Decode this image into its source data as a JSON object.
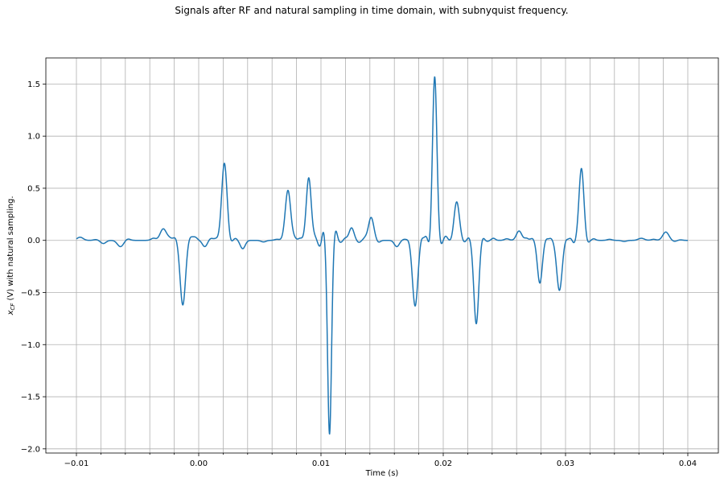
{
  "chart_data": {
    "type": "line",
    "title": "Signals after RF and natural sampling in time domain, with subnyquist frequency.",
    "xlabel": "Time (s)",
    "ylabel": "x_CF (V) with natural sampling.",
    "ylabel_main": "x",
    "ylabel_sub": "CF",
    "ylabel_rest": " (V) with natural sampling.",
    "xlim": [
      -0.0125,
      0.0425
    ],
    "ylim": [
      -2.04,
      1.75
    ],
    "grid": true,
    "x_ticks": [
      -0.01,
      0.0,
      0.01,
      0.02,
      0.03,
      0.04
    ],
    "x_tick_labels": [
      "−0.01",
      "0.00",
      "0.01",
      "0.02",
      "0.03",
      "0.04"
    ],
    "x_gridlines": [
      -0.01,
      -0.008,
      -0.006,
      -0.004,
      -0.002,
      0.0,
      0.002,
      0.004,
      0.006,
      0.008,
      0.01,
      0.012,
      0.014,
      0.016,
      0.018,
      0.02,
      0.022,
      0.024,
      0.026,
      0.028,
      0.03,
      0.032,
      0.034,
      0.036,
      0.038,
      0.04
    ],
    "y_ticks": [
      -2.0,
      -1.5,
      -1.0,
      -0.5,
      0.0,
      0.5,
      1.0,
      1.5
    ],
    "y_tick_labels": [
      "−2.0",
      "−1.5",
      "−1.0",
      "−0.5",
      "0.0",
      "0.5",
      "1.0",
      "1.5"
    ],
    "series": [
      {
        "color": "#1f77b4",
        "pulses": [
          {
            "t": -0.0097,
            "a": 0.03,
            "w": 0.00025
          },
          {
            "t": -0.0084,
            "a": 0.008,
            "w": 0.0002
          },
          {
            "t": -0.0078,
            "a": -0.03,
            "w": 0.00022
          },
          {
            "t": -0.0064,
            "a": -0.06,
            "w": 0.00025
          },
          {
            "t": -0.0058,
            "a": 0.015,
            "w": 0.0002
          },
          {
            "t": -0.0037,
            "a": 0.02,
            "w": 0.0002
          },
          {
            "t": -0.0029,
            "a": 0.11,
            "w": 0.00025
          },
          {
            "t": -0.0024,
            "a": 0.02,
            "w": 0.0002
          },
          {
            "t": -0.0019,
            "a": 0.03,
            "w": 0.00018
          },
          {
            "t": -0.0013,
            "a": -0.62,
            "w": 0.00022
          },
          {
            "t": -0.0007,
            "a": 0.035,
            "w": 0.00018
          },
          {
            "t": -0.0003,
            "a": 0.03,
            "w": 0.00018
          },
          {
            "t": 0.0005,
            "a": -0.06,
            "w": 0.0002
          },
          {
            "t": 0.001,
            "a": 0.02,
            "w": 0.00018
          },
          {
            "t": 0.0014,
            "a": 0.015,
            "w": 0.00015
          },
          {
            "t": 0.0021,
            "a": 0.74,
            "w": 0.00022
          },
          {
            "t": 0.0026,
            "a": -0.03,
            "w": 0.00016
          },
          {
            "t": 0.003,
            "a": 0.02,
            "w": 0.00016
          },
          {
            "t": 0.0036,
            "a": -0.08,
            "w": 0.0002
          },
          {
            "t": 0.0053,
            "a": -0.015,
            "w": 0.0002
          },
          {
            "t": 0.0064,
            "a": 0.01,
            "w": 0.0002
          },
          {
            "t": 0.0073,
            "a": 0.48,
            "w": 0.00022
          },
          {
            "t": 0.0078,
            "a": 0.02,
            "w": 0.00016
          },
          {
            "t": 0.0083,
            "a": 0.02,
            "w": 0.00016
          },
          {
            "t": 0.009,
            "a": 0.6,
            "w": 0.0002
          },
          {
            "t": 0.0095,
            "a": 0.03,
            "w": 0.00016
          },
          {
            "t": 0.0099,
            "a": -0.06,
            "w": 0.00016
          },
          {
            "t": 0.0102,
            "a": 0.1,
            "w": 0.00012
          },
          {
            "t": 0.0107,
            "a": -1.86,
            "w": 0.00016
          },
          {
            "t": 0.0112,
            "a": 0.1,
            "w": 0.00013
          },
          {
            "t": 0.0116,
            "a": -0.02,
            "w": 0.00015
          },
          {
            "t": 0.012,
            "a": 0.02,
            "w": 0.00015
          },
          {
            "t": 0.0125,
            "a": 0.12,
            "w": 0.0002
          },
          {
            "t": 0.0131,
            "a": -0.02,
            "w": 0.00016
          },
          {
            "t": 0.0136,
            "a": 0.02,
            "w": 0.00016
          },
          {
            "t": 0.0141,
            "a": 0.22,
            "w": 0.00022
          },
          {
            "t": 0.0147,
            "a": -0.02,
            "w": 0.00016
          },
          {
            "t": 0.0162,
            "a": -0.06,
            "w": 0.0002
          },
          {
            "t": 0.0168,
            "a": 0.01,
            "w": 0.00016
          },
          {
            "t": 0.0172,
            "a": 0.015,
            "w": 0.00016
          },
          {
            "t": 0.0177,
            "a": -0.63,
            "w": 0.00022
          },
          {
            "t": 0.0182,
            "a": 0.04,
            "w": 0.00015
          },
          {
            "t": 0.0186,
            "a": 0.04,
            "w": 0.00014
          },
          {
            "t": 0.0189,
            "a": -0.08,
            "w": 0.00013
          },
          {
            "t": 0.0193,
            "a": 1.57,
            "w": 0.00018
          },
          {
            "t": 0.0198,
            "a": -0.05,
            "w": 0.00013
          },
          {
            "t": 0.0202,
            "a": 0.04,
            "w": 0.00014
          },
          {
            "t": 0.0207,
            "a": -0.02,
            "w": 0.00015
          },
          {
            "t": 0.0211,
            "a": 0.37,
            "w": 0.00022
          },
          {
            "t": 0.0217,
            "a": -0.02,
            "w": 0.00015
          },
          {
            "t": 0.0221,
            "a": 0.03,
            "w": 0.00014
          },
          {
            "t": 0.0227,
            "a": -0.8,
            "w": 0.0002
          },
          {
            "t": 0.0232,
            "a": 0.035,
            "w": 0.00015
          },
          {
            "t": 0.0236,
            "a": -0.01,
            "w": 0.00015
          },
          {
            "t": 0.0241,
            "a": 0.02,
            "w": 0.00016
          },
          {
            "t": 0.0252,
            "a": 0.015,
            "w": 0.0002
          },
          {
            "t": 0.0262,
            "a": 0.09,
            "w": 0.00022
          },
          {
            "t": 0.0268,
            "a": 0.02,
            "w": 0.00016
          },
          {
            "t": 0.0273,
            "a": 0.02,
            "w": 0.00016
          },
          {
            "t": 0.0279,
            "a": -0.41,
            "w": 0.0002
          },
          {
            "t": 0.0284,
            "a": 0.02,
            "w": 0.00015
          },
          {
            "t": 0.0288,
            "a": 0.02,
            "w": 0.00015
          },
          {
            "t": 0.0295,
            "a": -0.48,
            "w": 0.00022
          },
          {
            "t": 0.03,
            "a": 0.02,
            "w": 0.00015
          },
          {
            "t": 0.0304,
            "a": 0.02,
            "w": 0.00014
          },
          {
            "t": 0.0307,
            "a": -0.03,
            "w": 0.00013
          },
          {
            "t": 0.0313,
            "a": 0.69,
            "w": 0.0002
          },
          {
            "t": 0.0318,
            "a": -0.03,
            "w": 0.00015
          },
          {
            "t": 0.0323,
            "a": 0.015,
            "w": 0.00016
          },
          {
            "t": 0.0336,
            "a": 0.01,
            "w": 0.0002
          },
          {
            "t": 0.0348,
            "a": -0.01,
            "w": 0.0002
          },
          {
            "t": 0.0362,
            "a": 0.02,
            "w": 0.00025
          },
          {
            "t": 0.0372,
            "a": 0.01,
            "w": 0.0002
          },
          {
            "t": 0.0382,
            "a": 0.08,
            "w": 0.00025
          },
          {
            "t": 0.0389,
            "a": -0.01,
            "w": 0.00018
          },
          {
            "t": 0.0394,
            "a": 0.005,
            "w": 0.00018
          }
        ],
        "x_start": -0.01,
        "x_end": 0.04
      }
    ]
  }
}
